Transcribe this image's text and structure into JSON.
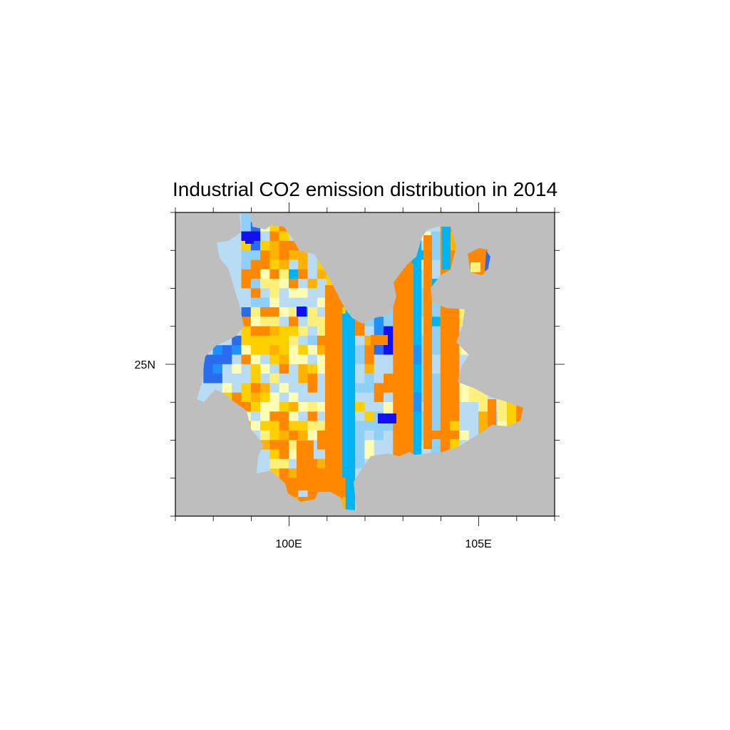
{
  "title": "Industrial CO2 emission distribution in 2014",
  "map": {
    "region": "Yunnan",
    "background_color": "#bebebe",
    "x_axis": {
      "range": [
        97,
        107
      ],
      "major_ticks": [
        100,
        105
      ],
      "labels": [
        "100E",
        "105E"
      ],
      "minor_step": 1
    },
    "y_axis": {
      "range": [
        21,
        29
      ],
      "major_ticks": [
        25
      ],
      "labels": [
        "25N"
      ],
      "minor_step": 1
    },
    "palette": {
      "dark_blue": "#1010f0",
      "royal_blue": "#2a6cf0",
      "dodger_blue": "#1e90ff",
      "deep_sky_blue": "#00b4f4",
      "light_sky_blue": "#8fd0f8",
      "pale_blue": "#b8dcf4",
      "pale_yellow": "#fffcb4",
      "light_yellow": "#fff07a",
      "gold": "#ffd000",
      "dark_gold": "#ffb300",
      "orange": "#ff8800"
    }
  }
}
